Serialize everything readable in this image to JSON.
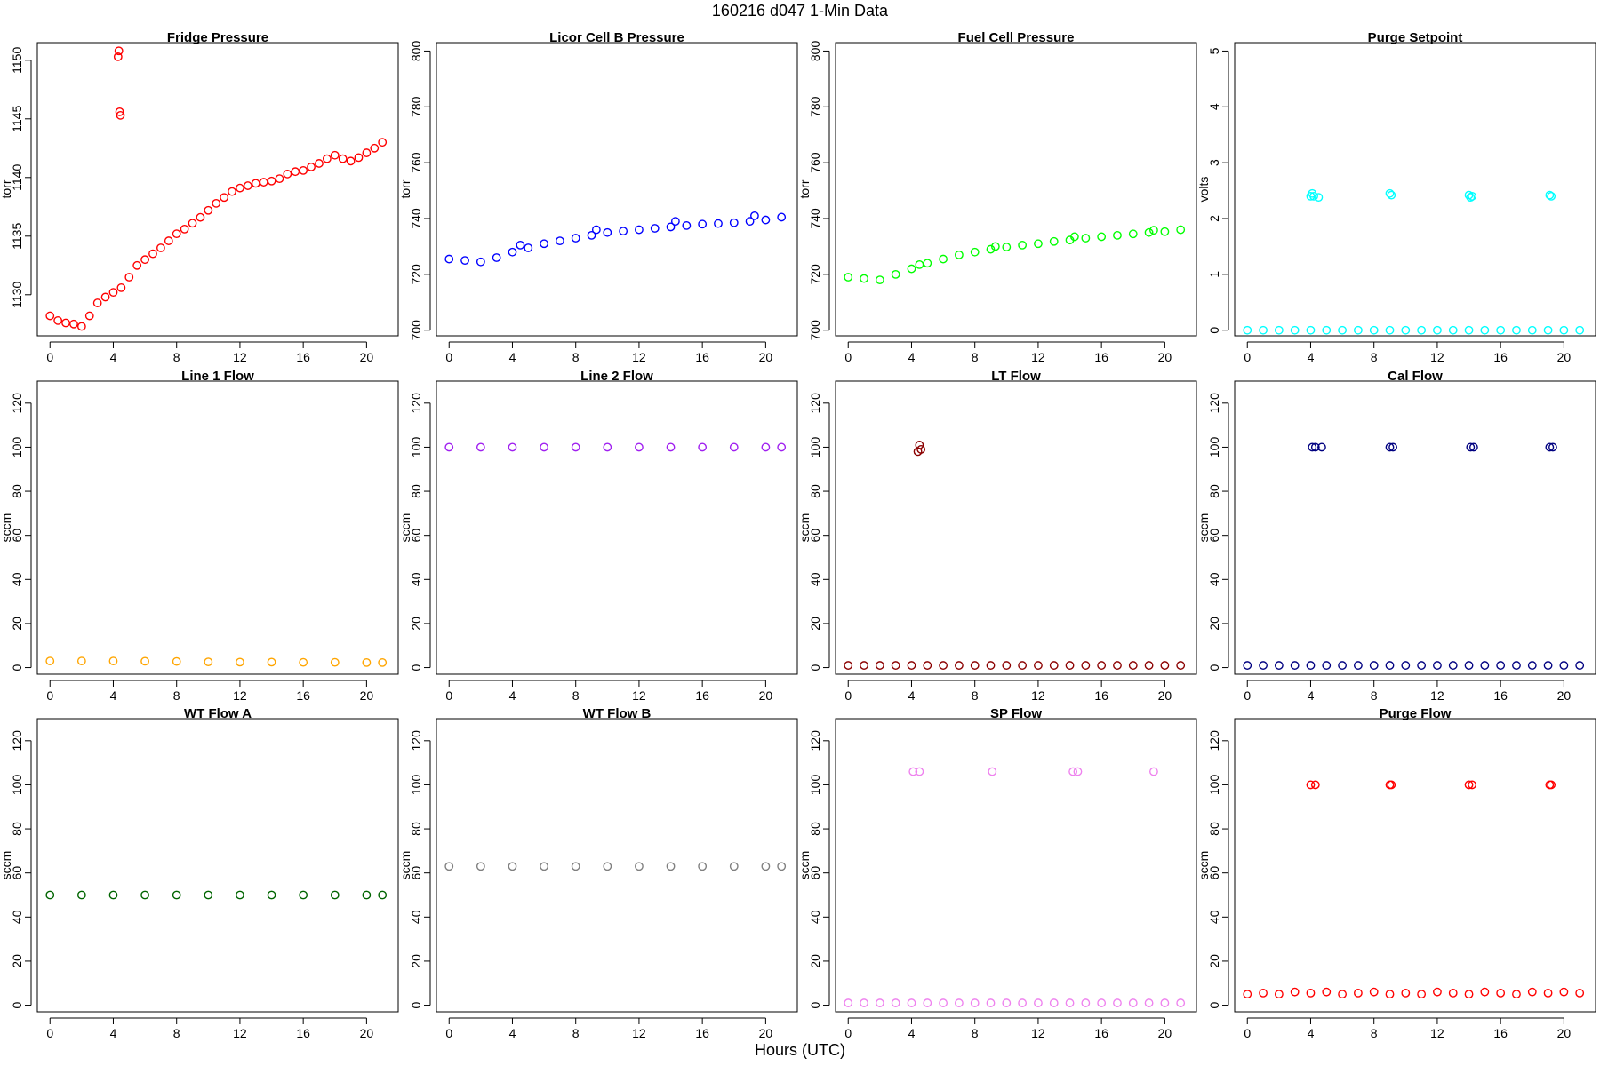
{
  "figure": {
    "title": "160216   d047   1-Min Data",
    "xlabel": "Hours (UTC)"
  },
  "chart_data": [
    {
      "type": "scatter",
      "title": "Fridge Pressure",
      "ylabel": "torr",
      "color": "#ff0000",
      "xlim": [
        -0.8,
        22.0
      ],
      "ylim": [
        1126.5,
        1151.5
      ],
      "xticks": [
        0,
        4,
        8,
        12,
        16,
        20
      ],
      "yticks": [
        1130,
        1135,
        1140,
        1145,
        1150
      ],
      "series": [
        {
          "x": [
            0,
            0.5,
            1,
            1.5,
            2,
            2.5,
            3,
            3.5,
            4,
            4.5,
            5,
            5.5,
            6,
            6.5,
            7,
            7.5,
            8,
            8.5,
            9,
            9.5,
            10,
            10.5,
            11,
            11.5,
            12,
            12.5,
            13,
            13.5,
            14,
            14.5,
            15,
            15.5,
            16,
            16.5,
            17,
            17.5,
            18,
            18.5,
            19,
            19.5,
            20,
            20.5,
            21,
            4.3,
            4.35,
            4.4,
            4.45
          ],
          "y": [
            1128.2,
            1127.8,
            1127.6,
            1127.5,
            1127.3,
            1128.2,
            1129.3,
            1129.8,
            1130.2,
            1130.6,
            1131.5,
            1132.5,
            1133.0,
            1133.5,
            1134.0,
            1134.6,
            1135.2,
            1135.6,
            1136.1,
            1136.6,
            1137.2,
            1137.8,
            1138.3,
            1138.8,
            1139.1,
            1139.3,
            1139.5,
            1139.6,
            1139.7,
            1139.9,
            1140.3,
            1140.5,
            1140.6,
            1140.9,
            1141.2,
            1141.6,
            1141.9,
            1141.6,
            1141.4,
            1141.7,
            1142.1,
            1142.5,
            1143.0,
            1150.3,
            1150.8,
            1145.6,
            1145.3
          ]
        }
      ]
    },
    {
      "type": "scatter",
      "title": "Licor Cell B Pressure",
      "ylabel": "torr",
      "color": "#0000ff",
      "xlim": [
        -0.8,
        22.0
      ],
      "ylim": [
        698,
        803
      ],
      "xticks": [
        0,
        4,
        8,
        12,
        16,
        20
      ],
      "yticks": [
        700,
        720,
        740,
        760,
        780,
        800
      ],
      "series": [
        {
          "x": [
            0,
            1,
            2,
            3,
            4,
            4.5,
            5,
            6,
            7,
            8,
            9,
            9.3,
            10,
            11,
            12,
            13,
            14,
            14.3,
            15,
            16,
            17,
            18,
            19,
            19.3,
            20,
            21
          ],
          "y": [
            725.5,
            725,
            724.5,
            726,
            728,
            730.5,
            729.5,
            731,
            732,
            733,
            734,
            736,
            735,
            735.5,
            736,
            736.5,
            737,
            739,
            737.5,
            738,
            738.2,
            738.5,
            739,
            741,
            739.5,
            740.5
          ]
        }
      ]
    },
    {
      "type": "scatter",
      "title": "Fuel Cell Pressure",
      "ylabel": "torr",
      "color": "#00ff00",
      "xlim": [
        -0.8,
        22.0
      ],
      "ylim": [
        698,
        803
      ],
      "xticks": [
        0,
        4,
        8,
        12,
        16,
        20
      ],
      "yticks": [
        700,
        720,
        740,
        760,
        780,
        800
      ],
      "series": [
        {
          "x": [
            0,
            1,
            2,
            3,
            4,
            4.5,
            5,
            6,
            7,
            8,
            9,
            9.3,
            10,
            11,
            12,
            13,
            14,
            14.3,
            15,
            16,
            17,
            18,
            19,
            19.3,
            20,
            21
          ],
          "y": [
            719,
            718.5,
            718,
            720,
            722,
            723.5,
            724,
            725.5,
            727,
            728,
            729,
            730,
            729.8,
            730.5,
            731,
            731.8,
            732.3,
            733.5,
            733,
            733.5,
            734,
            734.5,
            735,
            735.8,
            735.3,
            736
          ]
        }
      ]
    },
    {
      "type": "scatter",
      "title": "Purge Setpoint",
      "ylabel": "volts",
      "color": "#00ffff",
      "xlim": [
        -0.8,
        22.0
      ],
      "ylim": [
        -0.1,
        5.15
      ],
      "xticks": [
        0,
        4,
        8,
        12,
        16,
        20
      ],
      "yticks": [
        0,
        1,
        2,
        3,
        4,
        5
      ],
      "series": [
        {
          "x": [
            0,
            1,
            2,
            3,
            4,
            5,
            6,
            7,
            8,
            9,
            10,
            11,
            12,
            13,
            14,
            15,
            16,
            17,
            18,
            19,
            20,
            21,
            4.0,
            4.1,
            4.2,
            4.5,
            9.0,
            9.1,
            14.0,
            14.1,
            14.2,
            19.1,
            19.2
          ],
          "y": [
            0,
            0,
            0,
            0,
            0,
            0,
            0,
            0,
            0,
            0,
            0,
            0,
            0,
            0,
            0,
            0,
            0,
            0,
            0,
            0,
            0,
            0,
            2.4,
            2.45,
            2.4,
            2.38,
            2.45,
            2.42,
            2.42,
            2.38,
            2.4,
            2.42,
            2.4
          ]
        }
      ]
    },
    {
      "type": "scatter",
      "title": "Line 1 Flow",
      "ylabel": "sccm",
      "color": "#ffa500",
      "xlim": [
        -0.8,
        22.0
      ],
      "ylim": [
        -3,
        130
      ],
      "xticks": [
        0,
        4,
        8,
        12,
        16,
        20
      ],
      "yticks": [
        0,
        20,
        40,
        60,
        80,
        100,
        120
      ],
      "series": [
        {
          "x": [
            0,
            2,
            4,
            6,
            8,
            10,
            12,
            14,
            16,
            18,
            20,
            21
          ],
          "y": [
            3,
            3,
            3,
            2.9,
            2.8,
            2.6,
            2.5,
            2.5,
            2.4,
            2.4,
            2.3,
            2.3
          ]
        }
      ]
    },
    {
      "type": "scatter",
      "title": "Line 2 Flow",
      "ylabel": "sccm",
      "color": "#a020f0",
      "xlim": [
        -0.8,
        22.0
      ],
      "ylim": [
        -3,
        130
      ],
      "xticks": [
        0,
        4,
        8,
        12,
        16,
        20
      ],
      "yticks": [
        0,
        20,
        40,
        60,
        80,
        100,
        120
      ],
      "series": [
        {
          "x": [
            0,
            2,
            4,
            6,
            8,
            10,
            12,
            14,
            16,
            18,
            20,
            21
          ],
          "y": [
            100,
            100,
            100,
            100,
            100,
            100,
            100,
            100,
            100,
            100,
            100,
            100
          ]
        }
      ]
    },
    {
      "type": "scatter",
      "title": "LT Flow",
      "ylabel": "sccm",
      "color": "#8b0000",
      "xlim": [
        -0.8,
        22.0
      ],
      "ylim": [
        -3,
        130
      ],
      "xticks": [
        0,
        4,
        8,
        12,
        16,
        20
      ],
      "yticks": [
        0,
        20,
        40,
        60,
        80,
        100,
        120
      ],
      "series": [
        {
          "x": [
            0,
            1,
            2,
            3,
            4,
            5,
            6,
            7,
            8,
            9,
            10,
            11,
            12,
            13,
            14,
            15,
            16,
            17,
            18,
            19,
            20,
            21,
            4.4,
            4.5,
            4.6
          ],
          "y": [
            1,
            1,
            1,
            1,
            1,
            1,
            1,
            1,
            1,
            1,
            1,
            1,
            1,
            1,
            1,
            1,
            1,
            1,
            1,
            1,
            1,
            1,
            98,
            101,
            99
          ]
        }
      ]
    },
    {
      "type": "scatter",
      "title": "Cal Flow",
      "ylabel": "sccm",
      "color": "#000080",
      "xlim": [
        -0.8,
        22.0
      ],
      "ylim": [
        -3,
        130
      ],
      "xticks": [
        0,
        4,
        8,
        12,
        16,
        20
      ],
      "yticks": [
        0,
        20,
        40,
        60,
        80,
        100,
        120
      ],
      "series": [
        {
          "x": [
            0,
            1,
            2,
            3,
            4,
            5,
            6,
            7,
            8,
            9,
            10,
            11,
            12,
            13,
            14,
            15,
            16,
            17,
            18,
            19,
            20,
            21,
            4.1,
            4.3,
            4.7,
            9.0,
            9.2,
            14.1,
            14.3,
            19.1,
            19.3
          ],
          "y": [
            1,
            1,
            1,
            1,
            1,
            1,
            1,
            1,
            1,
            1,
            1,
            1,
            1,
            1,
            1,
            1,
            1,
            1,
            1,
            1,
            1,
            1,
            100,
            100,
            100,
            100,
            100,
            100,
            100,
            100,
            100
          ]
        }
      ]
    },
    {
      "type": "scatter",
      "title": "WT Flow A",
      "ylabel": "sccm",
      "color": "#006400",
      "xlim": [
        -0.8,
        22.0
      ],
      "ylim": [
        -3,
        130
      ],
      "xticks": [
        0,
        4,
        8,
        12,
        16,
        20
      ],
      "yticks": [
        0,
        20,
        40,
        60,
        80,
        100,
        120
      ],
      "series": [
        {
          "x": [
            0,
            2,
            4,
            6,
            8,
            10,
            12,
            14,
            16,
            18,
            20,
            21
          ],
          "y": [
            50,
            50,
            50,
            50,
            50,
            50,
            50,
            50,
            50,
            50,
            50,
            50
          ]
        }
      ]
    },
    {
      "type": "scatter",
      "title": "WT Flow B",
      "ylabel": "sccm",
      "color": "#808080",
      "xlim": [
        -0.8,
        22.0
      ],
      "ylim": [
        -3,
        130
      ],
      "xticks": [
        0,
        4,
        8,
        12,
        16,
        20
      ],
      "yticks": [
        0,
        20,
        40,
        60,
        80,
        100,
        120
      ],
      "series": [
        {
          "x": [
            0,
            2,
            4,
            6,
            8,
            10,
            12,
            14,
            16,
            18,
            20,
            21
          ],
          "y": [
            63,
            63,
            63,
            63,
            63,
            63,
            63,
            63,
            63,
            63,
            63,
            63
          ]
        }
      ]
    },
    {
      "type": "scatter",
      "title": "SP Flow",
      "ylabel": "sccm",
      "color": "#ee82ee",
      "xlim": [
        -0.8,
        22.0
      ],
      "ylim": [
        -3,
        130
      ],
      "xticks": [
        0,
        4,
        8,
        12,
        16,
        20
      ],
      "yticks": [
        0,
        20,
        40,
        60,
        80,
        100,
        120
      ],
      "series": [
        {
          "x": [
            0,
            1,
            2,
            3,
            4,
            5,
            6,
            7,
            8,
            9,
            10,
            11,
            12,
            13,
            14,
            15,
            16,
            17,
            18,
            19,
            20,
            21,
            4.1,
            4.5,
            9.1,
            14.2,
            14.5,
            19.3
          ],
          "y": [
            1,
            1,
            1,
            1,
            1,
            1,
            1,
            1,
            1,
            1,
            1,
            1,
            1,
            1,
            1,
            1,
            1,
            1,
            1,
            1,
            1,
            1,
            106,
            106,
            106,
            106,
            106,
            106
          ]
        }
      ]
    },
    {
      "type": "scatter",
      "title": "Purge Flow",
      "ylabel": "sccm",
      "color": "#ff0000",
      "xlim": [
        -0.8,
        22.0
      ],
      "ylim": [
        -3,
        130
      ],
      "xticks": [
        0,
        4,
        8,
        12,
        16,
        20
      ],
      "yticks": [
        0,
        20,
        40,
        60,
        80,
        100,
        120
      ],
      "series": [
        {
          "x": [
            0,
            1,
            2,
            3,
            4,
            5,
            6,
            7,
            8,
            9,
            10,
            11,
            12,
            13,
            14,
            15,
            16,
            17,
            18,
            19,
            20,
            21,
            4.0,
            4.3,
            9.0,
            9.1,
            14.0,
            14.2,
            19.1,
            19.2
          ],
          "y": [
            5,
            5.5,
            5,
            6,
            5.5,
            6,
            5,
            5.5,
            6,
            5,
            5.5,
            5,
            6,
            5.5,
            5,
            6,
            5.5,
            5,
            6,
            5.5,
            6,
            5.5,
            100,
            100,
            100,
            100,
            100,
            100,
            100,
            100
          ]
        }
      ]
    }
  ]
}
